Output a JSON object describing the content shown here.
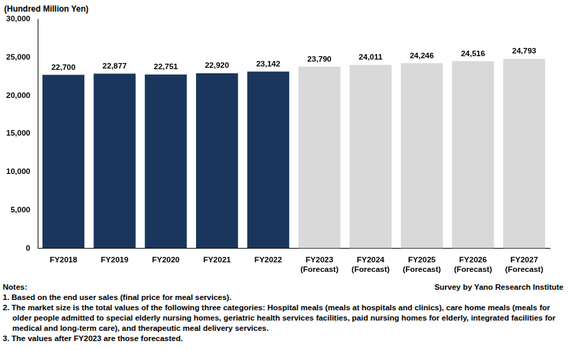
{
  "chart_data": {
    "type": "bar",
    "ylabel": "(Hundred Million Yen)",
    "categories": [
      "FY2018",
      "FY2019",
      "FY2020",
      "FY2021",
      "FY2022",
      "FY2023\n(Forecast)",
      "FY2024\n(Forecast)",
      "FY2025\n(Forecast)",
      "FY2026\n(Forecast)",
      "FY2027\n(Forecast)"
    ],
    "values": [
      22700,
      22877,
      22751,
      22920,
      23142,
      23790,
      24011,
      24246,
      24516,
      24793
    ],
    "value_labels": [
      "22,700",
      "22,877",
      "22,751",
      "22,920",
      "23,142",
      "23,790",
      "24,011",
      "24,246",
      "24,516",
      "24,793"
    ],
    "colors": [
      "#1b365d",
      "#1b365d",
      "#1b365d",
      "#1b365d",
      "#1b365d",
      "#d9d9d9",
      "#d9d9d9",
      "#d9d9d9",
      "#d9d9d9",
      "#d9d9d9"
    ],
    "ylim": [
      0,
      30000
    ],
    "yticks": [
      0,
      {
        "value": 5000,
        "label": "5,000"
      },
      {
        "value": 10000,
        "label": "10,000"
      },
      {
        "value": 15000,
        "label": "15,000"
      },
      {
        "value": 20000,
        "label": "20,000"
      },
      {
        "value": 25000,
        "label": "25,000"
      },
      {
        "value": 30000,
        "label": "30,000"
      }
    ],
    "grid": false,
    "data_labels": true,
    "annotations": [
      "Notes:",
      "1. Based on the end user sales (final price for meal services).",
      "2. The market size is the total values of the following three categories: Hospital meals (meals at hospitals and clinics), care home meals (meals for older people admitted to special elderly nursing homes, geriatric health services facilities, paid nursing homes for elderly, integrated facilities for medical and long-term care), and therapeutic meal delivery services.",
      "3. The values after FY2023 are those forecasted."
    ],
    "source": "Survey by Yano Research Institute"
  }
}
